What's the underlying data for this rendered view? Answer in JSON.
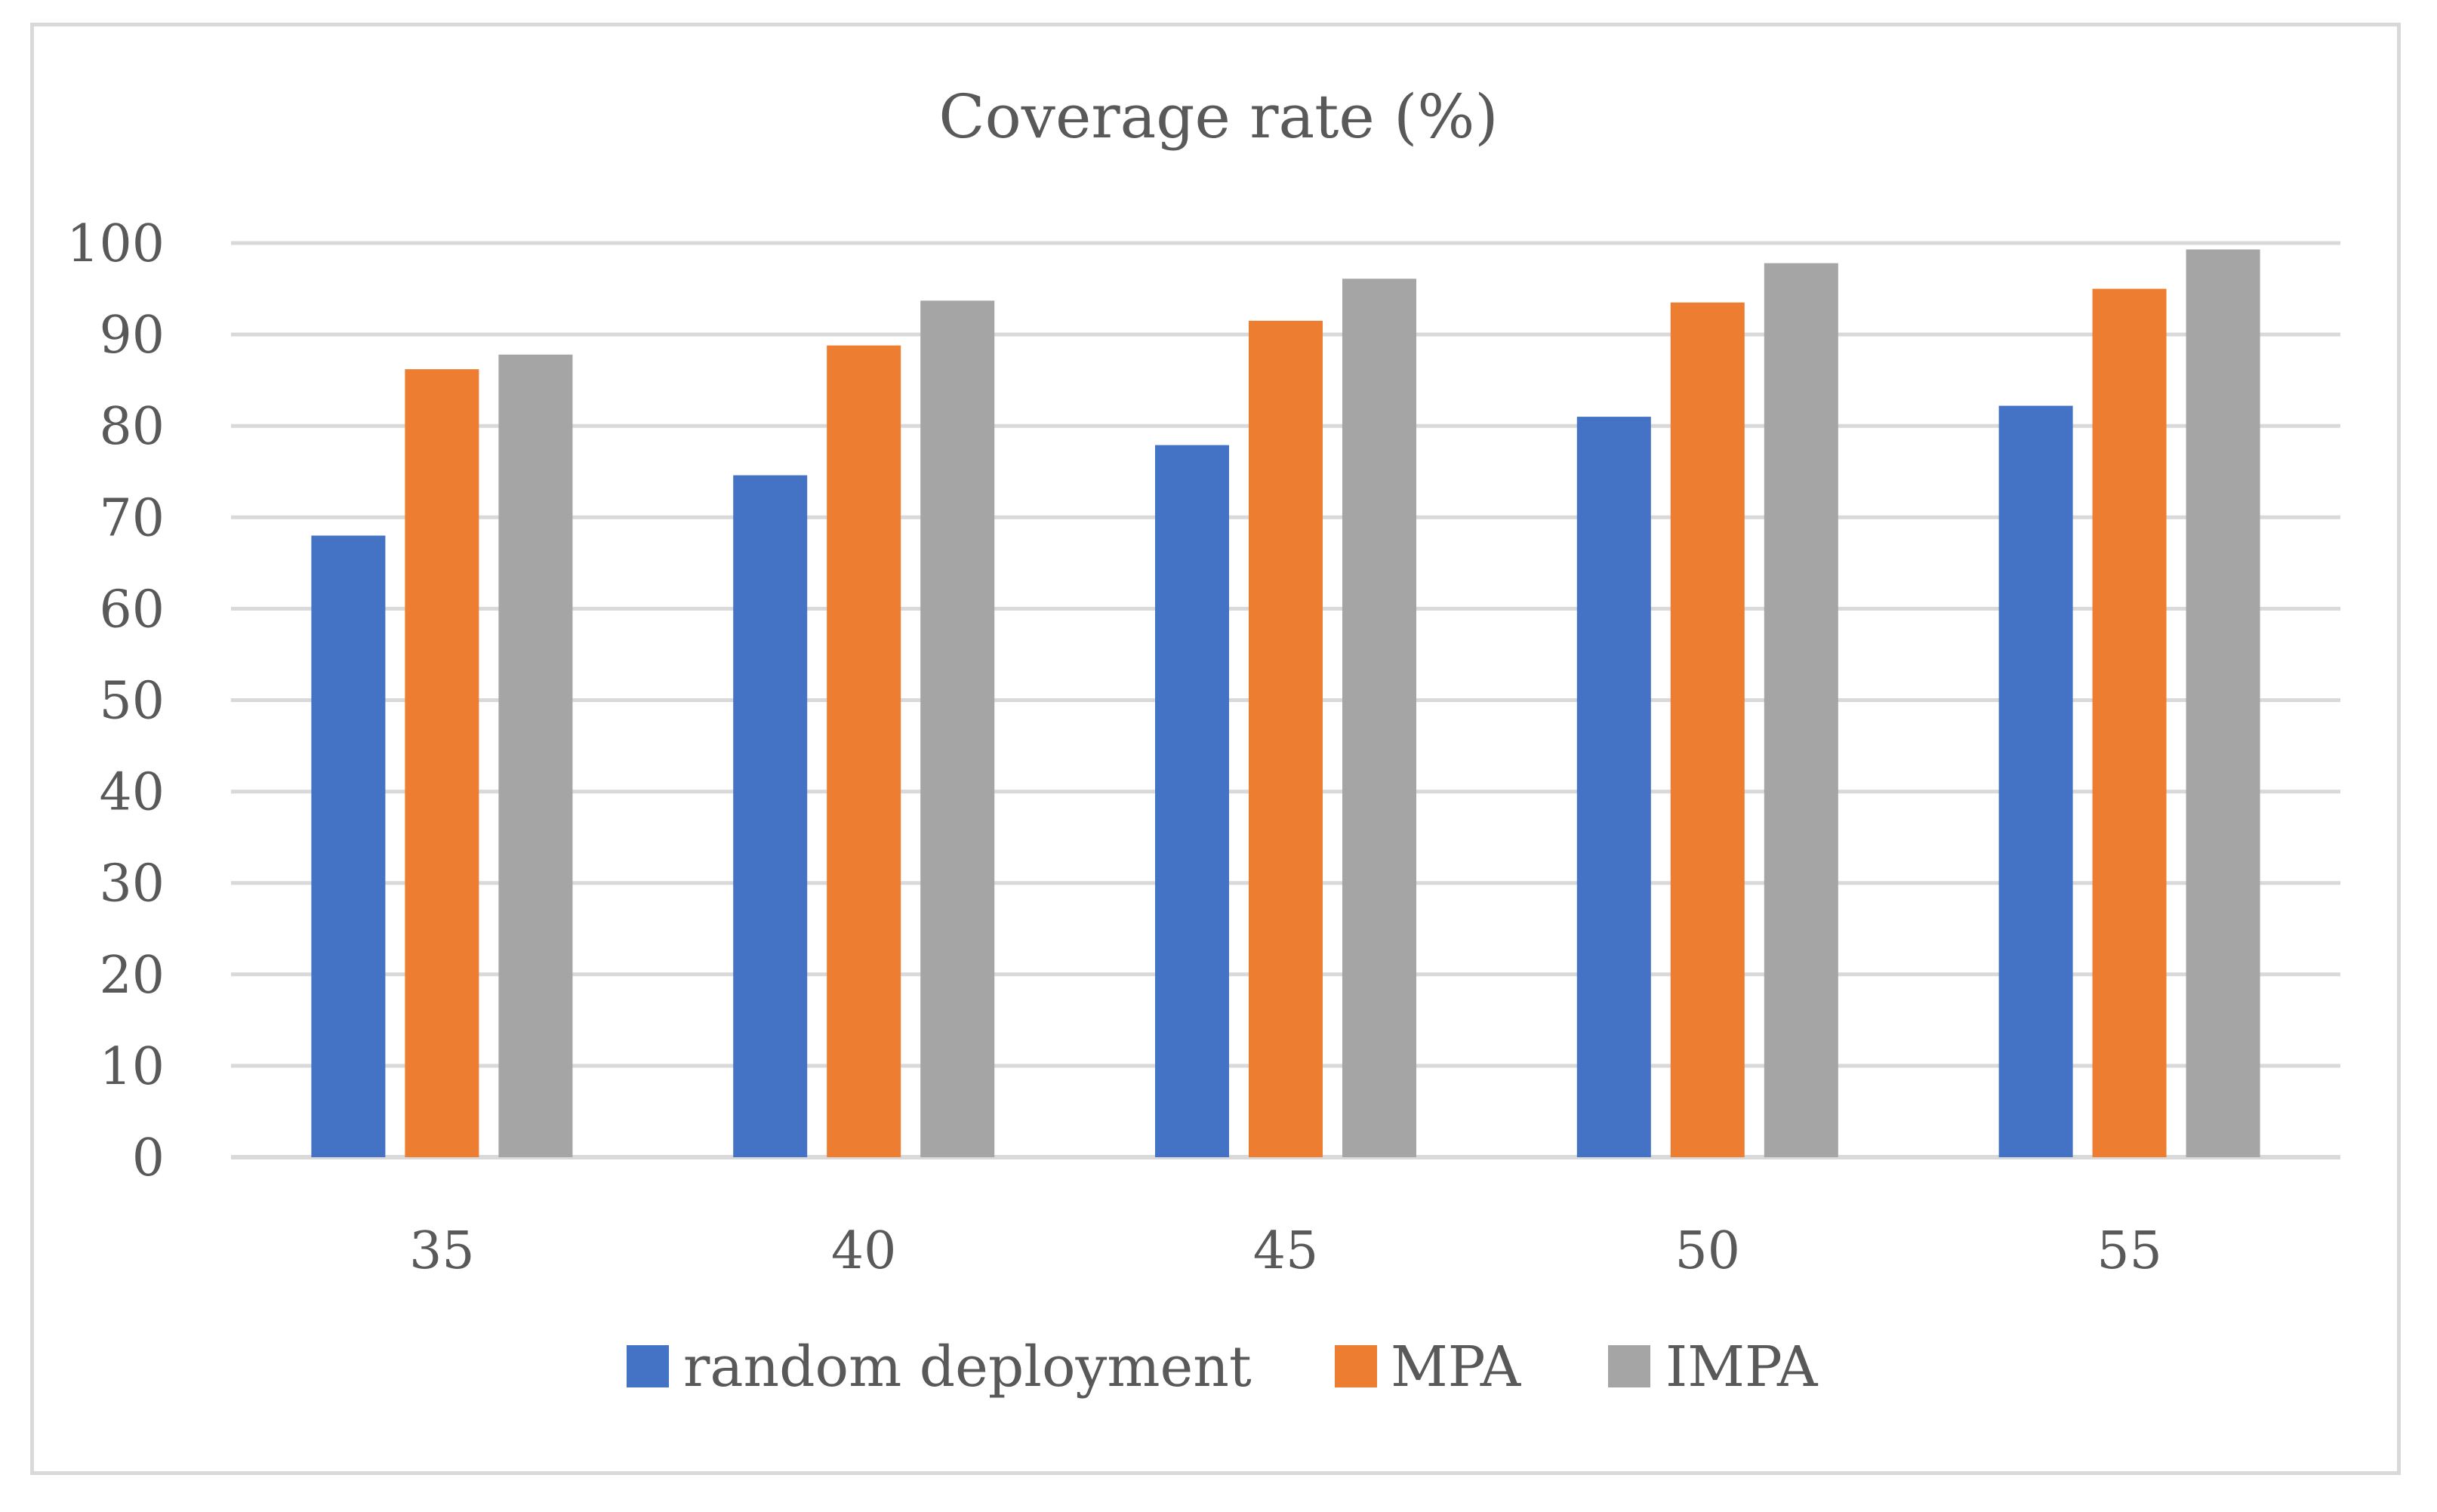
{
  "chart_data": {
    "type": "bar",
    "title": "Coverage rate (%)",
    "categories": [
      "35",
      "40",
      "45",
      "50",
      "55"
    ],
    "series": [
      {
        "name": "random deployment",
        "color": "#4472c4",
        "values": [
          68,
          74.6,
          77.9,
          81,
          82.2
        ]
      },
      {
        "name": "MPA",
        "color": "#ed7d31",
        "values": [
          86.2,
          88.8,
          91.5,
          93.5,
          95
        ]
      },
      {
        "name": "IMPA",
        "color": "#a5a5a5",
        "values": [
          87.8,
          93.7,
          96.1,
          97.8,
          99.3
        ]
      }
    ],
    "ylim": [
      0,
      100
    ],
    "yticks": [
      "0",
      "10",
      "20",
      "30",
      "40",
      "50",
      "60",
      "70",
      "80",
      "90",
      "100"
    ],
    "grid": true,
    "legend": "bottom",
    "xlabel": "",
    "ylabel": ""
  }
}
